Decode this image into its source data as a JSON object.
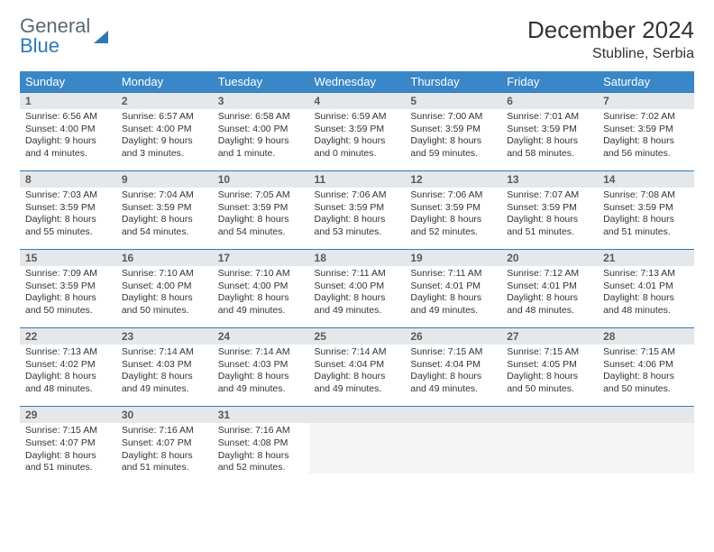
{
  "logo": {
    "text1": "General",
    "text2": "Blue"
  },
  "title": "December 2024",
  "location": "Stubline, Serbia",
  "colors": {
    "header_bg": "#3a87c8",
    "header_text": "#ffffff",
    "daynum_bg": "#e5e8ea",
    "daynum_text": "#5a5a5a",
    "row_border": "#2f78b7",
    "body_text": "#333333",
    "logo_gray": "#5a6a72",
    "logo_blue": "#2f78b7",
    "background": "#ffffff"
  },
  "typography": {
    "title_fontsize": 26,
    "location_fontsize": 16,
    "dayheader_fontsize": 13,
    "daynum_fontsize": 12,
    "body_fontsize": 10.5
  },
  "day_headers": [
    "Sunday",
    "Monday",
    "Tuesday",
    "Wednesday",
    "Thursday",
    "Friday",
    "Saturday"
  ],
  "weeks": [
    [
      {
        "num": "1",
        "sunrise": "Sunrise: 6:56 AM",
        "sunset": "Sunset: 4:00 PM",
        "daylight": "Daylight: 9 hours and 4 minutes."
      },
      {
        "num": "2",
        "sunrise": "Sunrise: 6:57 AM",
        "sunset": "Sunset: 4:00 PM",
        "daylight": "Daylight: 9 hours and 3 minutes."
      },
      {
        "num": "3",
        "sunrise": "Sunrise: 6:58 AM",
        "sunset": "Sunset: 4:00 PM",
        "daylight": "Daylight: 9 hours and 1 minute."
      },
      {
        "num": "4",
        "sunrise": "Sunrise: 6:59 AM",
        "sunset": "Sunset: 3:59 PM",
        "daylight": "Daylight: 9 hours and 0 minutes."
      },
      {
        "num": "5",
        "sunrise": "Sunrise: 7:00 AM",
        "sunset": "Sunset: 3:59 PM",
        "daylight": "Daylight: 8 hours and 59 minutes."
      },
      {
        "num": "6",
        "sunrise": "Sunrise: 7:01 AM",
        "sunset": "Sunset: 3:59 PM",
        "daylight": "Daylight: 8 hours and 58 minutes."
      },
      {
        "num": "7",
        "sunrise": "Sunrise: 7:02 AM",
        "sunset": "Sunset: 3:59 PM",
        "daylight": "Daylight: 8 hours and 56 minutes."
      }
    ],
    [
      {
        "num": "8",
        "sunrise": "Sunrise: 7:03 AM",
        "sunset": "Sunset: 3:59 PM",
        "daylight": "Daylight: 8 hours and 55 minutes."
      },
      {
        "num": "9",
        "sunrise": "Sunrise: 7:04 AM",
        "sunset": "Sunset: 3:59 PM",
        "daylight": "Daylight: 8 hours and 54 minutes."
      },
      {
        "num": "10",
        "sunrise": "Sunrise: 7:05 AM",
        "sunset": "Sunset: 3:59 PM",
        "daylight": "Daylight: 8 hours and 54 minutes."
      },
      {
        "num": "11",
        "sunrise": "Sunrise: 7:06 AM",
        "sunset": "Sunset: 3:59 PM",
        "daylight": "Daylight: 8 hours and 53 minutes."
      },
      {
        "num": "12",
        "sunrise": "Sunrise: 7:06 AM",
        "sunset": "Sunset: 3:59 PM",
        "daylight": "Daylight: 8 hours and 52 minutes."
      },
      {
        "num": "13",
        "sunrise": "Sunrise: 7:07 AM",
        "sunset": "Sunset: 3:59 PM",
        "daylight": "Daylight: 8 hours and 51 minutes."
      },
      {
        "num": "14",
        "sunrise": "Sunrise: 7:08 AM",
        "sunset": "Sunset: 3:59 PM",
        "daylight": "Daylight: 8 hours and 51 minutes."
      }
    ],
    [
      {
        "num": "15",
        "sunrise": "Sunrise: 7:09 AM",
        "sunset": "Sunset: 3:59 PM",
        "daylight": "Daylight: 8 hours and 50 minutes."
      },
      {
        "num": "16",
        "sunrise": "Sunrise: 7:10 AM",
        "sunset": "Sunset: 4:00 PM",
        "daylight": "Daylight: 8 hours and 50 minutes."
      },
      {
        "num": "17",
        "sunrise": "Sunrise: 7:10 AM",
        "sunset": "Sunset: 4:00 PM",
        "daylight": "Daylight: 8 hours and 49 minutes."
      },
      {
        "num": "18",
        "sunrise": "Sunrise: 7:11 AM",
        "sunset": "Sunset: 4:00 PM",
        "daylight": "Daylight: 8 hours and 49 minutes."
      },
      {
        "num": "19",
        "sunrise": "Sunrise: 7:11 AM",
        "sunset": "Sunset: 4:01 PM",
        "daylight": "Daylight: 8 hours and 49 minutes."
      },
      {
        "num": "20",
        "sunrise": "Sunrise: 7:12 AM",
        "sunset": "Sunset: 4:01 PM",
        "daylight": "Daylight: 8 hours and 48 minutes."
      },
      {
        "num": "21",
        "sunrise": "Sunrise: 7:13 AM",
        "sunset": "Sunset: 4:01 PM",
        "daylight": "Daylight: 8 hours and 48 minutes."
      }
    ],
    [
      {
        "num": "22",
        "sunrise": "Sunrise: 7:13 AM",
        "sunset": "Sunset: 4:02 PM",
        "daylight": "Daylight: 8 hours and 48 minutes."
      },
      {
        "num": "23",
        "sunrise": "Sunrise: 7:14 AM",
        "sunset": "Sunset: 4:03 PM",
        "daylight": "Daylight: 8 hours and 49 minutes."
      },
      {
        "num": "24",
        "sunrise": "Sunrise: 7:14 AM",
        "sunset": "Sunset: 4:03 PM",
        "daylight": "Daylight: 8 hours and 49 minutes."
      },
      {
        "num": "25",
        "sunrise": "Sunrise: 7:14 AM",
        "sunset": "Sunset: 4:04 PM",
        "daylight": "Daylight: 8 hours and 49 minutes."
      },
      {
        "num": "26",
        "sunrise": "Sunrise: 7:15 AM",
        "sunset": "Sunset: 4:04 PM",
        "daylight": "Daylight: 8 hours and 49 minutes."
      },
      {
        "num": "27",
        "sunrise": "Sunrise: 7:15 AM",
        "sunset": "Sunset: 4:05 PM",
        "daylight": "Daylight: 8 hours and 50 minutes."
      },
      {
        "num": "28",
        "sunrise": "Sunrise: 7:15 AM",
        "sunset": "Sunset: 4:06 PM",
        "daylight": "Daylight: 8 hours and 50 minutes."
      }
    ],
    [
      {
        "num": "29",
        "sunrise": "Sunrise: 7:15 AM",
        "sunset": "Sunset: 4:07 PM",
        "daylight": "Daylight: 8 hours and 51 minutes."
      },
      {
        "num": "30",
        "sunrise": "Sunrise: 7:16 AM",
        "sunset": "Sunset: 4:07 PM",
        "daylight": "Daylight: 8 hours and 51 minutes."
      },
      {
        "num": "31",
        "sunrise": "Sunrise: 7:16 AM",
        "sunset": "Sunset: 4:08 PM",
        "daylight": "Daylight: 8 hours and 52 minutes."
      },
      null,
      null,
      null,
      null
    ]
  ]
}
